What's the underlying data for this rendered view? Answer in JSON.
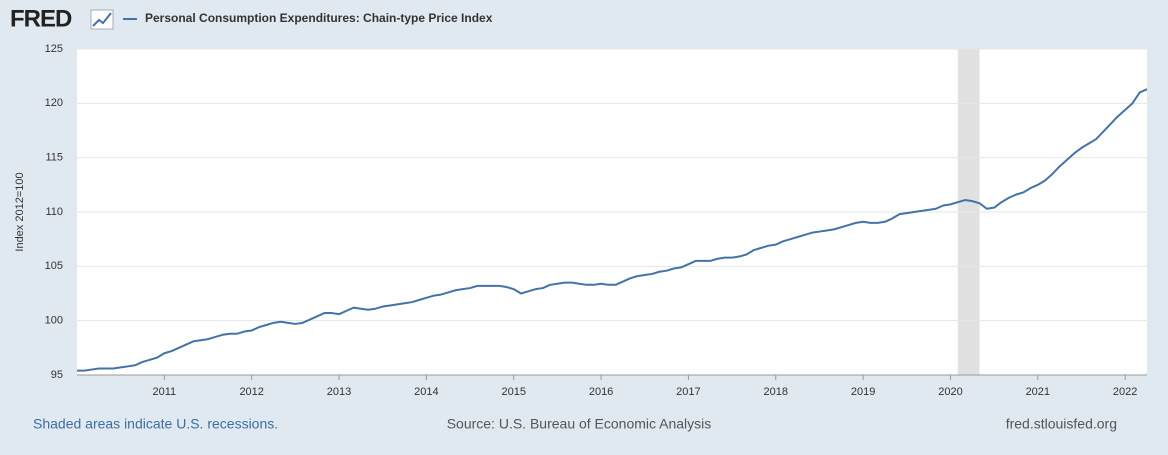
{
  "header": {
    "logo": "FRED"
  },
  "chart_data": {
    "type": "line",
    "y_label": "Index 2012=100",
    "x": [
      "2010-01",
      "2010-02",
      "2010-03",
      "2010-04",
      "2010-05",
      "2010-06",
      "2010-07",
      "2010-08",
      "2010-09",
      "2010-10",
      "2010-11",
      "2010-12",
      "2011-01",
      "2011-02",
      "2011-03",
      "2011-04",
      "2011-05",
      "2011-06",
      "2011-07",
      "2011-08",
      "2011-09",
      "2011-10",
      "2011-11",
      "2011-12",
      "2012-01",
      "2012-02",
      "2012-03",
      "2012-04",
      "2012-05",
      "2012-06",
      "2012-07",
      "2012-08",
      "2012-09",
      "2012-10",
      "2012-11",
      "2012-12",
      "2013-01",
      "2013-02",
      "2013-03",
      "2013-04",
      "2013-05",
      "2013-06",
      "2013-07",
      "2013-08",
      "2013-09",
      "2013-10",
      "2013-11",
      "2013-12",
      "2014-01",
      "2014-02",
      "2014-03",
      "2014-04",
      "2014-05",
      "2014-06",
      "2014-07",
      "2014-08",
      "2014-09",
      "2014-10",
      "2014-11",
      "2014-12",
      "2015-01",
      "2015-02",
      "2015-03",
      "2015-04",
      "2015-05",
      "2015-06",
      "2015-07",
      "2015-08",
      "2015-09",
      "2015-10",
      "2015-11",
      "2015-12",
      "2016-01",
      "2016-02",
      "2016-03",
      "2016-04",
      "2016-05",
      "2016-06",
      "2016-07",
      "2016-08",
      "2016-09",
      "2016-10",
      "2016-11",
      "2016-12",
      "2017-01",
      "2017-02",
      "2017-03",
      "2017-04",
      "2017-05",
      "2017-06",
      "2017-07",
      "2017-08",
      "2017-09",
      "2017-10",
      "2017-11",
      "2017-12",
      "2018-01",
      "2018-02",
      "2018-03",
      "2018-04",
      "2018-05",
      "2018-06",
      "2018-07",
      "2018-08",
      "2018-09",
      "2018-10",
      "2018-11",
      "2018-12",
      "2019-01",
      "2019-02",
      "2019-03",
      "2019-04",
      "2019-05",
      "2019-06",
      "2019-07",
      "2019-08",
      "2019-09",
      "2019-10",
      "2019-11",
      "2019-12",
      "2020-01",
      "2020-02",
      "2020-03",
      "2020-04",
      "2020-05",
      "2020-06",
      "2020-07",
      "2020-08",
      "2020-09",
      "2020-10",
      "2020-11",
      "2020-12",
      "2021-01",
      "2021-02",
      "2021-03",
      "2021-04",
      "2021-05",
      "2021-06",
      "2021-07",
      "2021-08",
      "2021-09",
      "2021-10",
      "2021-11",
      "2021-12",
      "2022-01",
      "2022-02",
      "2022-03",
      "2022-04"
    ],
    "series": [
      {
        "name": "Personal Consumption Expenditures: Chain-type Price Index",
        "color": "#4572a7",
        "values": [
          95.4,
          95.4,
          95.5,
          95.6,
          95.6,
          95.6,
          95.7,
          95.8,
          95.9,
          96.2,
          96.4,
          96.6,
          97.0,
          97.2,
          97.5,
          97.8,
          98.1,
          98.2,
          98.3,
          98.5,
          98.7,
          98.8,
          98.8,
          99.0,
          99.1,
          99.4,
          99.6,
          99.8,
          99.9,
          99.8,
          99.7,
          99.8,
          100.1,
          100.4,
          100.7,
          100.7,
          100.6,
          100.9,
          101.2,
          101.1,
          101.0,
          101.1,
          101.3,
          101.4,
          101.5,
          101.6,
          101.7,
          101.9,
          102.1,
          102.3,
          102.4,
          102.6,
          102.8,
          102.9,
          103.0,
          103.2,
          103.2,
          103.2,
          103.2,
          103.1,
          102.9,
          102.5,
          102.7,
          102.9,
          103.0,
          103.3,
          103.4,
          103.5,
          103.5,
          103.4,
          103.3,
          103.3,
          103.4,
          103.3,
          103.3,
          103.6,
          103.9,
          104.1,
          104.2,
          104.3,
          104.5,
          104.6,
          104.8,
          104.9,
          105.2,
          105.5,
          105.5,
          105.5,
          105.7,
          105.8,
          105.8,
          105.9,
          106.1,
          106.5,
          106.7,
          106.9,
          107.0,
          107.3,
          107.5,
          107.7,
          107.9,
          108.1,
          108.2,
          108.3,
          108.4,
          108.6,
          108.8,
          109.0,
          109.1,
          109.0,
          109.0,
          109.1,
          109.4,
          109.8,
          109.9,
          110.0,
          110.1,
          110.2,
          110.3,
          110.6,
          110.7,
          110.9,
          111.1,
          111.0,
          110.8,
          110.3,
          110.4,
          110.9,
          111.3,
          111.6,
          111.8,
          112.2,
          112.5,
          112.9,
          113.5,
          114.2,
          114.8,
          115.4,
          115.9,
          116.3,
          116.7,
          117.4,
          118.1,
          118.8,
          119.4,
          120.0,
          121.0,
          121.3
        ]
      }
    ],
    "xlim": [
      "2010-01",
      "2022-04"
    ],
    "xticks": [
      2011,
      2012,
      2013,
      2014,
      2015,
      2016,
      2017,
      2018,
      2019,
      2020,
      2021,
      2022
    ],
    "ylim": [
      95,
      125
    ],
    "yticks": [
      95,
      100,
      105,
      110,
      115,
      120,
      125
    ],
    "grid": true,
    "recessions": [
      {
        "start": "2020-02",
        "end": "2020-04"
      }
    ]
  },
  "footer": {
    "note": "Shaded areas indicate U.S. recessions.",
    "source": "Source: U.S. Bureau of Economic Analysis",
    "site": "fred.stlouisfed.org"
  }
}
